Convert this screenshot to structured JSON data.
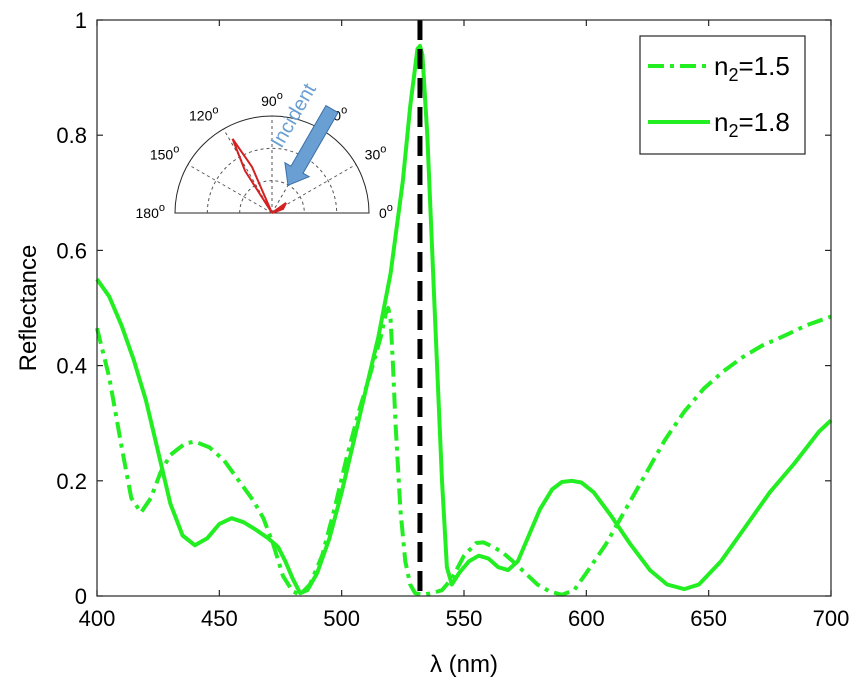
{
  "chart_data": {
    "type": "line",
    "xlabel": "λ (nm)",
    "ylabel": "Reflectance",
    "xlim": [
      400,
      700
    ],
    "ylim": [
      0,
      1
    ],
    "xticks": [
      "400",
      "450",
      "500",
      "550",
      "600",
      "650",
      "700"
    ],
    "yticks": [
      "0",
      "0.2",
      "0.4",
      "0.6",
      "0.8",
      "1"
    ],
    "grid": false,
    "legend_position": "top-right",
    "series": [
      {
        "name": "n₂=1.5",
        "label_base": "n",
        "label_sub": "2",
        "label_rest": "=1.5",
        "style": "dash-dot",
        "color": "#22ee22",
        "points": [
          [
            400,
            0.465
          ],
          [
            405,
            0.38
          ],
          [
            410,
            0.26
          ],
          [
            414,
            0.17
          ],
          [
            418,
            0.145
          ],
          [
            422,
            0.17
          ],
          [
            426,
            0.215
          ],
          [
            430,
            0.245
          ],
          [
            436,
            0.265
          ],
          [
            440,
            0.268
          ],
          [
            446,
            0.258
          ],
          [
            452,
            0.235
          ],
          [
            458,
            0.2
          ],
          [
            464,
            0.165
          ],
          [
            468,
            0.135
          ],
          [
            472,
            0.09
          ],
          [
            476,
            0.035
          ],
          [
            480,
            0.008
          ],
          [
            483,
            0.002
          ],
          [
            487,
            0.02
          ],
          [
            492,
            0.07
          ],
          [
            497,
            0.15
          ],
          [
            502,
            0.24
          ],
          [
            507,
            0.32
          ],
          [
            512,
            0.39
          ],
          [
            516,
            0.45
          ],
          [
            518,
            0.49
          ],
          [
            519,
            0.5
          ],
          [
            520,
            0.48
          ],
          [
            521,
            0.4
          ],
          [
            522,
            0.3
          ],
          [
            524,
            0.15
          ],
          [
            526,
            0.06
          ],
          [
            528,
            0.02
          ],
          [
            530,
            0.005
          ],
          [
            533,
            0.002
          ],
          [
            537,
            0.005
          ],
          [
            541,
            0.01
          ],
          [
            545,
            0.03
          ],
          [
            550,
            0.07
          ],
          [
            555,
            0.092
          ],
          [
            558,
            0.093
          ],
          [
            562,
            0.085
          ],
          [
            566,
            0.075
          ],
          [
            570,
            0.06
          ],
          [
            575,
            0.04
          ],
          [
            580,
            0.02
          ],
          [
            585,
            0.008
          ],
          [
            590,
            0.002
          ],
          [
            595,
            0.01
          ],
          [
            600,
            0.04
          ],
          [
            608,
            0.09
          ],
          [
            616,
            0.15
          ],
          [
            624,
            0.21
          ],
          [
            632,
            0.27
          ],
          [
            640,
            0.32
          ],
          [
            648,
            0.36
          ],
          [
            656,
            0.39
          ],
          [
            664,
            0.415
          ],
          [
            672,
            0.435
          ],
          [
            680,
            0.45
          ],
          [
            690,
            0.47
          ],
          [
            700,
            0.485
          ]
        ]
      },
      {
        "name": "n₂=1.8",
        "label_base": "n",
        "label_sub": "2",
        "label_rest": "=1.8",
        "style": "solid",
        "color": "#22ee22",
        "points": [
          [
            400,
            0.55
          ],
          [
            405,
            0.52
          ],
          [
            410,
            0.47
          ],
          [
            415,
            0.41
          ],
          [
            420,
            0.34
          ],
          [
            425,
            0.25
          ],
          [
            430,
            0.16
          ],
          [
            435,
            0.105
          ],
          [
            440,
            0.088
          ],
          [
            445,
            0.1
          ],
          [
            450,
            0.125
          ],
          [
            455,
            0.135
          ],
          [
            460,
            0.128
          ],
          [
            465,
            0.115
          ],
          [
            470,
            0.1
          ],
          [
            474,
            0.085
          ],
          [
            477,
            0.06
          ],
          [
            480,
            0.03
          ],
          [
            483,
            0.005
          ],
          [
            486,
            0.01
          ],
          [
            490,
            0.04
          ],
          [
            495,
            0.1
          ],
          [
            500,
            0.18
          ],
          [
            505,
            0.27
          ],
          [
            510,
            0.36
          ],
          [
            515,
            0.45
          ],
          [
            520,
            0.56
          ],
          [
            525,
            0.72
          ],
          [
            528,
            0.85
          ],
          [
            531,
            0.95
          ],
          [
            532,
            0.955
          ],
          [
            533,
            0.94
          ],
          [
            535,
            0.8
          ],
          [
            538,
            0.5
          ],
          [
            541,
            0.2
          ],
          [
            543,
            0.05
          ],
          [
            545,
            0.02
          ],
          [
            548,
            0.04
          ],
          [
            552,
            0.06
          ],
          [
            556,
            0.07
          ],
          [
            560,
            0.065
          ],
          [
            564,
            0.05
          ],
          [
            568,
            0.045
          ],
          [
            572,
            0.06
          ],
          [
            576,
            0.1
          ],
          [
            581,
            0.15
          ],
          [
            586,
            0.185
          ],
          [
            590,
            0.198
          ],
          [
            594,
            0.2
          ],
          [
            598,
            0.197
          ],
          [
            603,
            0.18
          ],
          [
            610,
            0.14
          ],
          [
            618,
            0.09
          ],
          [
            626,
            0.045
          ],
          [
            633,
            0.02
          ],
          [
            640,
            0.012
          ],
          [
            646,
            0.02
          ],
          [
            655,
            0.06
          ],
          [
            665,
            0.12
          ],
          [
            675,
            0.18
          ],
          [
            685,
            0.23
          ],
          [
            695,
            0.285
          ],
          [
            700,
            0.305
          ]
        ]
      }
    ],
    "reference_line": {
      "x": 532,
      "style": "dashed",
      "color": "#000000"
    }
  },
  "inset": {
    "angle_labels": [
      {
        "text": "0",
        "deg": 0
      },
      {
        "text": "30",
        "deg": 30
      },
      {
        "text": "60",
        "deg": 60
      },
      {
        "text": "90",
        "deg": 90
      },
      {
        "text": "120",
        "deg": 120
      },
      {
        "text": "150",
        "deg": 150
      },
      {
        "text": "180",
        "deg": 180
      }
    ],
    "degree_symbol": "o",
    "incident_label": "Incident",
    "incident_color": "#6a9fd4",
    "lobe_color": "#d42020",
    "lobe_angle_deg": 118,
    "incident_angle_deg": 60
  }
}
